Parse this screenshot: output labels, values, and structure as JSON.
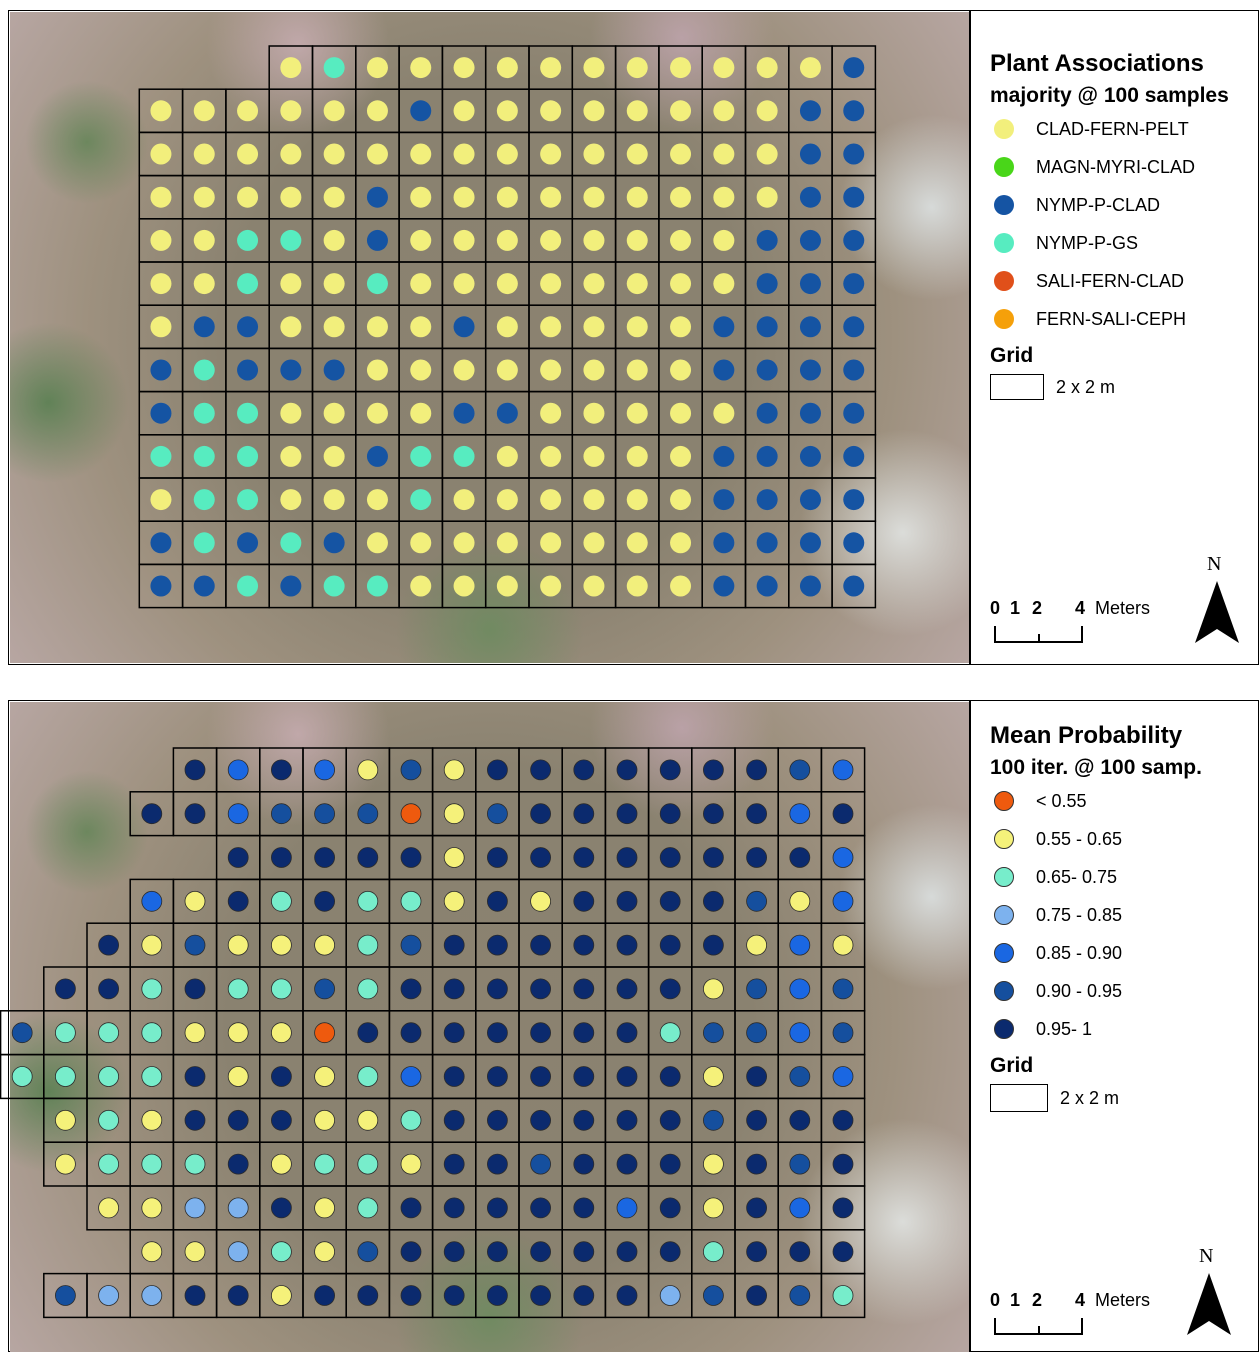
{
  "top": {
    "legend": {
      "title": "Plant Associations",
      "subtitle": "majority @ 100 samples",
      "classes": [
        {
          "label": "CLAD-FERN-PELT",
          "color": "#f2ef7c"
        },
        {
          "label": "MAGN-MYRI-CLAD",
          "color": "#49d619"
        },
        {
          "label": "NYMP-P-CLAD",
          "color": "#1554a3"
        },
        {
          "label": "NYMP-P-GS",
          "color": "#57ecc0"
        },
        {
          "label": "SALI-FERN-CLAD",
          "color": "#e0501a"
        },
        {
          "label": "FERN-SALI-CEPH",
          "color": "#f5a00a"
        }
      ],
      "grid_heading": "Grid",
      "grid_label": "2 x 2 m"
    },
    "scale": {
      "ticks": [
        "0",
        "1",
        "2",
        "4"
      ],
      "unit": "Meters"
    },
    "north": "N",
    "cells": [
      "-----YTYYYYYYYYYYYB",
      "YYYYYYBYYYYYYYYBB",
      "YYYYYYYYYYYYYYYBB",
      "YYYYYBYYYYYYYYYBB",
      "YYTTYBYYYYYYYYBBB",
      "YYTYYTYYYYYYYYBBB",
      "YBBYYYYBYYYYYBBBB",
      "BTBBBYYYYYYYYBBBB",
      "BTTYYYYBBYYYYYBBB",
      "TTTYYBTTYYYYYBBBB",
      "YTTYYYTYYYYYYBBBB",
      "BTBTBYYYYYYYYBBBB",
      "BBTBTTYYYYYYYBBBB"
    ]
  },
  "bottom": {
    "legend": {
      "title": "Mean Probability",
      "subtitle": "100 iter. @ 100  samp.",
      "classes": [
        {
          "label": "< 0.55",
          "color": "#ee5a0e"
        },
        {
          "label": "0.55 - 0.65",
          "color": "#f5f17a"
        },
        {
          "label": "0.65- 0.75",
          "color": "#77edcb"
        },
        {
          "label": "0.75 - 0.85",
          "color": "#7db2ee"
        },
        {
          "label": "0.85 - 0.90",
          "color": "#1a67e2"
        },
        {
          "label": "0.90 - 0.95",
          "color": "#154f9e"
        },
        {
          "label": "0.95- 1",
          "color": "#0b2a6e"
        }
      ],
      "grid_heading": "Grid",
      "grid_label": "2 x 2 m"
    },
    "scale": {
      "ticks": [
        "0",
        "1",
        "2",
        "4"
      ],
      "unit": "Meters"
    },
    "north": "N",
    "cells": [
      "---7676ABA7777777B6",
      "776BBB1AB77777767",
      "77777A777777776",
      "6A7C7CCA7A7777BA6",
      "7ABAAACB7777777A6A",
      "77C7CCBC7777777AB6B",
      "BCCCAAA17777777CBB6B",
      "CCCC7A7AC6777777A7B6",
      "ACA777AAC777777B777",
      "ACCC7ACCA77B777A7B7",
      "AADD7AC7777767A767",
      "AADC AB7777777C777",
      "BDD77A77777777DB7BC"
    ]
  }
}
